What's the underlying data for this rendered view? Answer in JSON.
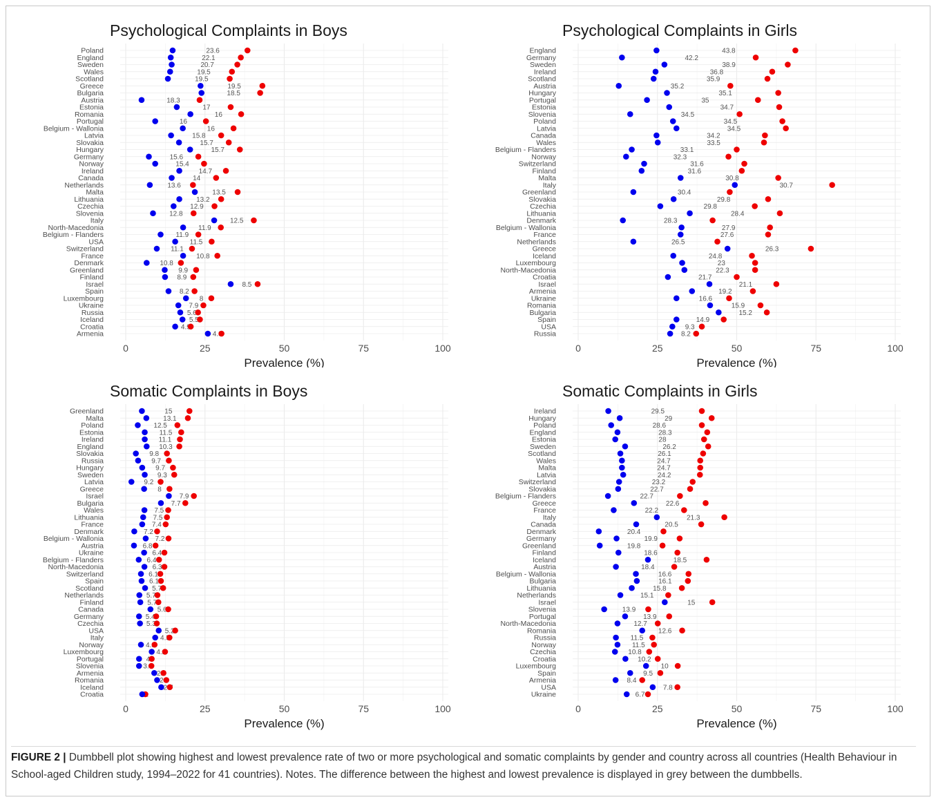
{
  "caption": {
    "label": "FIGURE 2 |",
    "text": " Dumbbell plot showing highest and lowest prevalence rate of two or more psychological and somatic complaints by gender and country across all countries (Health Behaviour in School-aged Children study, 1994–2022 for 41 countries). Notes. The difference between the highest and lowest prevalence is displayed in grey between the dumbbells."
  },
  "colors": {
    "low": "#0000ee",
    "high": "#ee0000",
    "diff_label": "#555555"
  },
  "chart_data": [
    {
      "type": "dumbbell",
      "title": "Psychological Complaints in Boys",
      "xlabel": "Prevalence (%)",
      "xlim": [
        0,
        100
      ],
      "xticks": [
        0,
        25,
        50,
        75,
        100
      ],
      "categories": [
        "Poland",
        "England",
        "Sweden",
        "Wales",
        "Scotland",
        "Greece",
        "Bulgaria",
        "Austria",
        "Estonia",
        "Romania",
        "Portugal",
        "Belgium - Wallonia",
        "Latvia",
        "Slovakia",
        "Hungary",
        "Germany",
        "Norway",
        "Ireland",
        "Canada",
        "Netherlands",
        "Malta",
        "Lithuania",
        "Czechia",
        "Slovenia",
        "Italy",
        "North-Macedonia",
        "Belgium - Flanders",
        "USA",
        "Switzerland",
        "France",
        "Denmark",
        "Greenland",
        "Finland",
        "Israel",
        "Spain",
        "Luxembourg",
        "Ukraine",
        "Russia",
        "Iceland",
        "Croatia",
        "Armenia"
      ],
      "low": [
        14.8,
        14.2,
        14.5,
        14.0,
        13.3,
        23.6,
        23.9,
        5.0,
        16.1,
        20.4,
        9.3,
        18.0,
        14.3,
        16.8,
        20.3,
        7.3,
        9.3,
        16.9,
        14.5,
        7.6,
        21.8,
        16.9,
        15.1,
        8.6,
        27.9,
        18.1,
        11.0,
        15.6,
        9.8,
        18.1,
        6.6,
        12.3,
        12.4,
        33.1,
        13.5,
        19.0,
        16.6,
        17.2,
        17.9,
        15.6,
        25.9
      ],
      "high": [
        38.4,
        36.3,
        35.2,
        33.5,
        32.8,
        43.1,
        42.4,
        23.3,
        33.1,
        36.4,
        25.3,
        34.0,
        30.1,
        32.5,
        36.0,
        22.9,
        24.7,
        31.6,
        28.5,
        21.2,
        35.3,
        30.1,
        28.0,
        21.4,
        40.4,
        30.0,
        22.9,
        27.1,
        20.9,
        28.9,
        17.4,
        22.2,
        21.3,
        41.6,
        21.7,
        27.0,
        24.5,
        22.8,
        23.4,
        20.5,
        30.2
      ],
      "diff": [
        23.6,
        22.1,
        20.7,
        19.5,
        19.5,
        19.5,
        18.5,
        18.3,
        17,
        16,
        16,
        16,
        15.8,
        15.7,
        15.7,
        15.6,
        15.4,
        14.7,
        14,
        13.6,
        13.5,
        13.2,
        12.9,
        12.8,
        12.5,
        11.9,
        11.9,
        11.5,
        11.1,
        10.8,
        10.8,
        9.9,
        8.9,
        8.5,
        8.2,
        8,
        7.9,
        5.6,
        5.5,
        4.9,
        4.3
      ]
    },
    {
      "type": "dumbbell",
      "title": "Psychological Complaints in Girls",
      "xlabel": "Prevalence (%)",
      "xlim": [
        0,
        100
      ],
      "xticks": [
        0,
        25,
        50,
        75,
        100
      ],
      "categories": [
        "England",
        "Germany",
        "Sweden",
        "Ireland",
        "Scotland",
        "Austria",
        "Hungary",
        "Portugal",
        "Estonia",
        "Slovenia",
        "Poland",
        "Latvia",
        "Canada",
        "Wales",
        "Belgium - Flanders",
        "Norway",
        "Switzerland",
        "Finland",
        "Malta",
        "Italy",
        "Greenland",
        "Slovakia",
        "Czechia",
        "Lithuania",
        "Denmark",
        "Belgium - Wallonia",
        "France",
        "Netherlands",
        "Greece",
        "Iceland",
        "Luxembourg",
        "North-Macedonia",
        "Croatia",
        "Israel",
        "Armenia",
        "Ukraine",
        "Romania",
        "Bulgaria",
        "Spain",
        "USA",
        "Russia"
      ],
      "low": [
        24.7,
        13.8,
        27.2,
        24.4,
        23.8,
        12.8,
        28.0,
        21.7,
        28.7,
        16.4,
        29.9,
        31.0,
        24.7,
        25.1,
        16.9,
        15.1,
        20.8,
        20.0,
        32.3,
        49.4,
        17.4,
        30.1,
        25.9,
        35.2,
        14.1,
        32.6,
        32.3,
        17.4,
        47.1,
        30.0,
        32.8,
        33.5,
        28.3,
        41.4,
        35.9,
        31.0,
        41.6,
        44.3,
        31.0,
        29.7,
        29.0
      ],
      "high": [
        68.5,
        56.0,
        66.1,
        61.2,
        59.7,
        48.0,
        63.1,
        56.7,
        63.4,
        50.9,
        64.4,
        65.5,
        58.9,
        58.6,
        50.0,
        47.4,
        52.4,
        51.6,
        63.1,
        80.1,
        47.8,
        59.9,
        55.7,
        63.6,
        42.4,
        60.5,
        59.9,
        43.9,
        73.4,
        54.8,
        55.8,
        55.8,
        50.0,
        62.5,
        55.1,
        47.6,
        57.5,
        59.5,
        45.9,
        39.0,
        37.2
      ],
      "diff": [
        43.8,
        42.2,
        38.9,
        36.8,
        35.9,
        35.2,
        35.1,
        35,
        34.7,
        34.5,
        34.5,
        34.5,
        34.2,
        33.5,
        33.1,
        32.3,
        31.6,
        31.6,
        30.8,
        30.7,
        30.4,
        29.8,
        29.8,
        28.4,
        28.3,
        27.9,
        27.6,
        26.5,
        26.3,
        24.8,
        23,
        22.3,
        21.7,
        21.1,
        19.2,
        16.6,
        15.9,
        15.2,
        14.9,
        9.3,
        8.2
      ]
    },
    {
      "type": "dumbbell",
      "title": "Somatic Complaints in Boys",
      "xlabel": "Prevalence (%)",
      "xlim": [
        0,
        100
      ],
      "xticks": [
        0,
        25,
        50,
        75,
        100
      ],
      "categories": [
        "Greenland",
        "Malta",
        "Poland",
        "Estonia",
        "Ireland",
        "England",
        "Slovakia",
        "Russia",
        "Hungary",
        "Sweden",
        "Latvia",
        "Greece",
        "Israel",
        "Bulgaria",
        "Wales",
        "Lithuania",
        "France",
        "Denmark",
        "Belgium - Wallonia",
        "Austria",
        "Ukraine",
        "Belgium - Flanders",
        "North-Macedonia",
        "Switzerland",
        "Spain",
        "Scotland",
        "Netherlands",
        "Finland",
        "Canada",
        "Germany",
        "Czechia",
        "USA",
        "Italy",
        "Norway",
        "Luxembourg",
        "Portugal",
        "Slovenia",
        "Armenia",
        "Romania",
        "Iceland",
        "Croatia"
      ],
      "low": [
        5.1,
        6.5,
        3.8,
        6.0,
        6.0,
        6.6,
        3.2,
        3.9,
        5.2,
        6.0,
        1.8,
        5.8,
        13.6,
        11.1,
        5.9,
        5.5,
        5.2,
        2.7,
        6.3,
        2.6,
        5.8,
        4.1,
        5.9,
        4.8,
        5.0,
        6.1,
        4.3,
        4.6,
        7.8,
        4.2,
        4.5,
        10.4,
        9.3,
        4.8,
        8.2,
        4.2,
        4.2,
        9.0,
        9.9,
        11.2,
        5.2
      ],
      "high": [
        20.1,
        19.6,
        16.3,
        17.5,
        17.1,
        16.9,
        13.0,
        13.6,
        14.9,
        15.3,
        11.0,
        13.8,
        21.5,
        18.8,
        13.4,
        13.0,
        12.6,
        9.9,
        13.5,
        9.4,
        12.2,
        10.5,
        12.2,
        10.9,
        11.1,
        11.8,
        10.0,
        10.3,
        13.4,
        9.6,
        9.8,
        15.6,
        13.8,
        9.1,
        12.4,
        8.2,
        8.1,
        11.9,
        12.8,
        13.9,
        6.2
      ],
      "diff": [
        15,
        13.1,
        12.5,
        11.5,
        11.1,
        10.3,
        9.8,
        9.7,
        9.7,
        9.3,
        9.2,
        8,
        7.9,
        7.7,
        7.5,
        7.5,
        7.4,
        7.2,
        7.2,
        6.8,
        6.4,
        6.4,
        6.3,
        6.1,
        6.1,
        5.7,
        5.7,
        5.7,
        5.6,
        5.4,
        5.3,
        5.2,
        4.5,
        4.3,
        4.2,
        4,
        3.9,
        2.9,
        2.9,
        2.7,
        1
      ]
    },
    {
      "type": "dumbbell",
      "title": "Somatic Complaints in Girls",
      "xlabel": "Prevalence (%)",
      "xlim": [
        0,
        100
      ],
      "xticks": [
        0,
        25,
        50,
        75,
        100
      ],
      "categories": [
        "Ireland",
        "Hungary",
        "Poland",
        "England",
        "Estonia",
        "Sweden",
        "Scotland",
        "Wales",
        "Malta",
        "Latvia",
        "Switzerland",
        "Slovakia",
        "Belgium - Flanders",
        "Greece",
        "France",
        "Italy",
        "Canada",
        "Denmark",
        "Germany",
        "Greenland",
        "Finland",
        "Iceland",
        "Austria",
        "Belgium - Wallonia",
        "Bulgaria",
        "Lithuania",
        "Netherlands",
        "Israel",
        "Slovenia",
        "Portugal",
        "North-Macedonia",
        "Romania",
        "Russia",
        "Norway",
        "Czechia",
        "Croatia",
        "Luxembourg",
        "Spain",
        "Armenia",
        "USA",
        "Ukraine"
      ],
      "low": [
        9.5,
        13.1,
        10.4,
        12.4,
        11.7,
        14.8,
        13.3,
        13.8,
        13.8,
        14.2,
        12.9,
        12.6,
        9.4,
        17.6,
        11.2,
        24.8,
        18.3,
        6.5,
        12.1,
        6.8,
        12.7,
        22.0,
        11.9,
        18.2,
        18.5,
        16.9,
        13.3,
        27.3,
        8.2,
        14.8,
        12.4,
        20.2,
        11.9,
        12.4,
        11.6,
        14.9,
        21.4,
        16.4,
        11.8,
        23.5,
        15.3
      ],
      "high": [
        39.0,
        42.1,
        39.0,
        40.7,
        39.7,
        41.0,
        39.4,
        38.5,
        38.5,
        38.4,
        36.1,
        35.3,
        32.1,
        40.2,
        33.4,
        46.1,
        38.8,
        26.9,
        32.0,
        26.6,
        31.3,
        40.5,
        30.3,
        34.8,
        34.6,
        32.7,
        28.4,
        42.3,
        22.1,
        28.7,
        25.1,
        32.8,
        23.4,
        23.9,
        22.4,
        25.1,
        31.4,
        25.9,
        20.2,
        31.3,
        22.0
      ],
      "diff": [
        29.5,
        29,
        28.6,
        28.3,
        28,
        26.2,
        26.1,
        24.7,
        24.7,
        24.2,
        23.2,
        22.7,
        22.7,
        22.6,
        22.2,
        21.3,
        20.5,
        20.4,
        19.9,
        19.8,
        18.6,
        18.5,
        18.4,
        16.6,
        16.1,
        15.8,
        15.1,
        15,
        13.9,
        13.9,
        12.7,
        12.6,
        11.5,
        11.5,
        10.8,
        10.2,
        10,
        9.5,
        8.4,
        7.8,
        6.7
      ]
    }
  ]
}
